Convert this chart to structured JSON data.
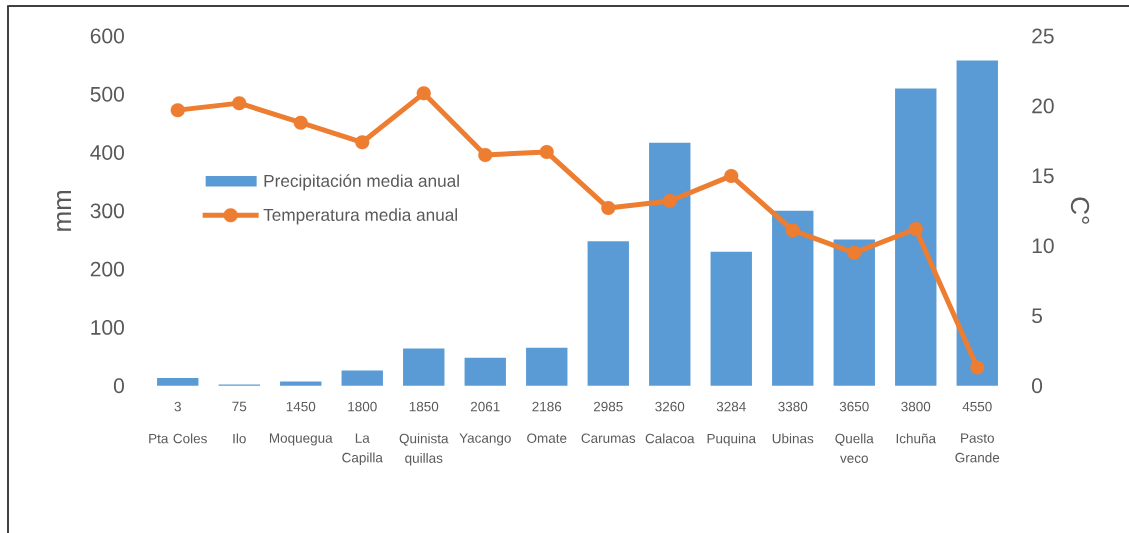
{
  "chart_data": {
    "type": "bar",
    "categories": [
      "Pta Coles",
      "Ilo",
      "Moquegua",
      "La\nCapilla",
      "Quinista\nquillas",
      "Yacango",
      "Omate",
      "Carumas",
      "Calacoa",
      "Puquina",
      "Ubinas",
      "Quella\nveco",
      "Ichuña",
      "Pasto\nGrande"
    ],
    "series": [
      {
        "name": "Precipitación media anual",
        "color": "#5b9bd5",
        "values": [
          13,
          2,
          7,
          26,
          64,
          48,
          65,
          248,
          417,
          230,
          300,
          251,
          510,
          558
        ]
      },
      {
        "name": "Temperatura media anual",
        "type": "line",
        "axis": "y2",
        "color": "#ed7d31",
        "values": [
          19.7,
          20.2,
          18.8,
          17.4,
          20.9,
          16.5,
          16.7,
          12.7,
          13.2,
          15.0,
          11.1,
          9.5,
          11.2,
          1.3
        ]
      }
    ],
    "ylabel": "mm",
    "y2label": "C°",
    "ylim": [
      0,
      600
    ],
    "yticks": [
      0,
      100,
      200,
      300,
      400,
      500,
      600
    ],
    "y2lim": [
      0,
      25
    ],
    "y2ticks": [
      0,
      5,
      10,
      15,
      20,
      25
    ],
    "marker": "circle",
    "legend": "left",
    "annotations": [
      "3",
      "75",
      "1450",
      "1800",
      "1850",
      "2061",
      "2186",
      "2985",
      "3260",
      "3284",
      "3380",
      "3650",
      "3800",
      "4550"
    ]
  }
}
